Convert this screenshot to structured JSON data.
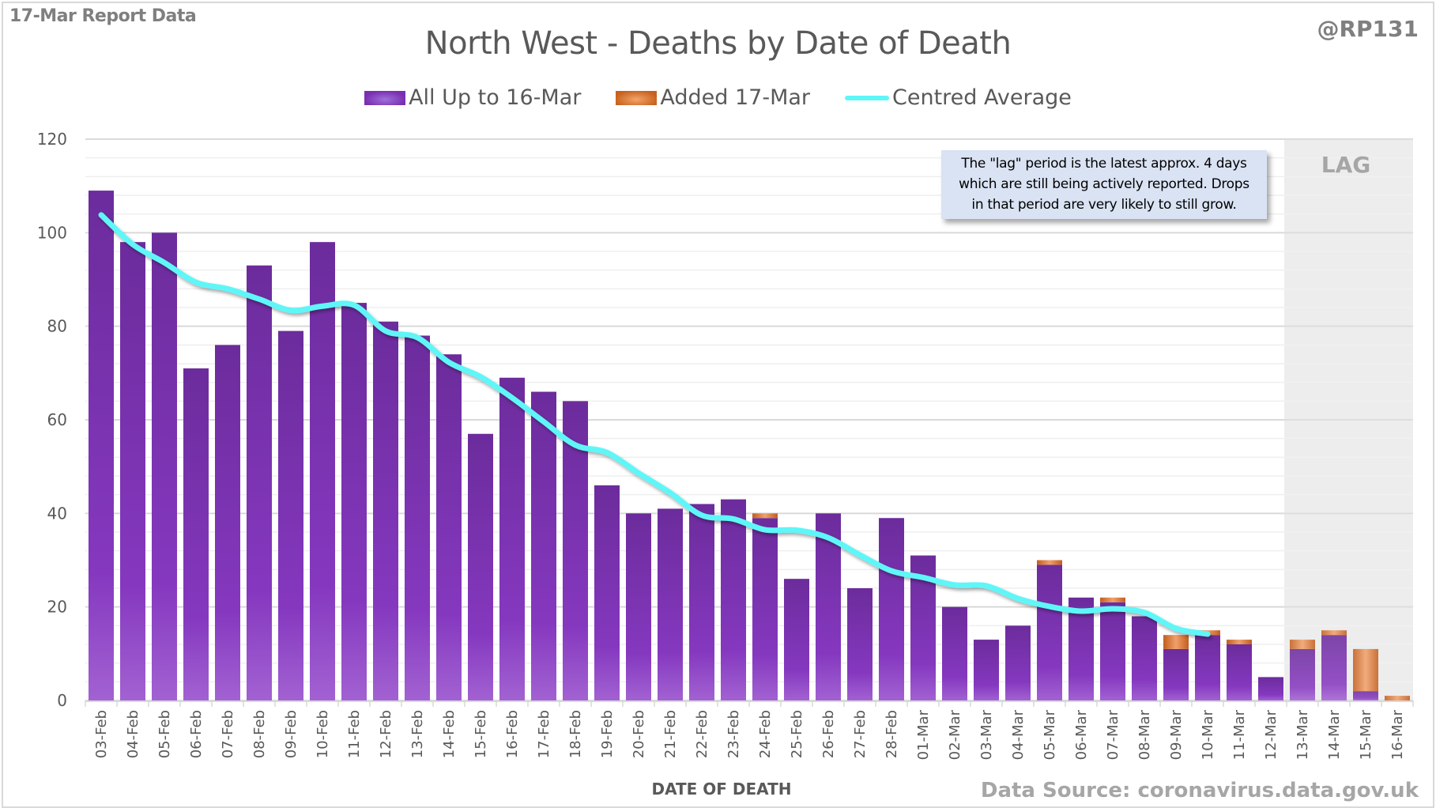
{
  "header": {
    "report_note": "17-Mar Report Data",
    "handle": "@RP131"
  },
  "annotation": {
    "lines": [
      "The \"lag\" period is the latest approx. 4 days",
      "which are still being actively reported.  Drops",
      "in that period are very likely to still grow."
    ],
    "lag_label": "LAG"
  },
  "footer": {
    "data_source": "Data Source: coronavirus.data.gov.uk"
  },
  "colors": {
    "all_up_to": "#7a2fb3",
    "added": "#d56f2a",
    "average": "#5ff6f8",
    "lag_shade": "#ebebeb",
    "annotation_bg": "#dae3f3"
  },
  "chart_data": {
    "type": "bar",
    "stacked": true,
    "title": "North West - Deaths by Date of Death",
    "xlabel": "DATE OF DEATH",
    "ylabel": "",
    "ylim": [
      0,
      120
    ],
    "yticks": [
      0,
      20,
      40,
      60,
      80,
      100,
      120
    ],
    "grid": true,
    "legend_position": "top-center",
    "categories": [
      "03-Feb",
      "04-Feb",
      "05-Feb",
      "06-Feb",
      "07-Feb",
      "08-Feb",
      "09-Feb",
      "10-Feb",
      "11-Feb",
      "12-Feb",
      "13-Feb",
      "14-Feb",
      "15-Feb",
      "16-Feb",
      "17-Feb",
      "18-Feb",
      "19-Feb",
      "20-Feb",
      "21-Feb",
      "22-Feb",
      "23-Feb",
      "24-Feb",
      "25-Feb",
      "26-Feb",
      "27-Feb",
      "28-Feb",
      "01-Mar",
      "02-Mar",
      "03-Mar",
      "04-Mar",
      "05-Mar",
      "06-Mar",
      "07-Mar",
      "08-Mar",
      "09-Mar",
      "10-Mar",
      "11-Mar",
      "12-Mar",
      "13-Mar",
      "14-Mar",
      "15-Mar",
      "16-Mar"
    ],
    "series": [
      {
        "name": "All Up to 16-Mar",
        "type": "bar",
        "values": [
          109,
          98,
          100,
          71,
          76,
          93,
          79,
          98,
          85,
          81,
          78,
          74,
          57,
          69,
          66,
          64,
          46,
          40,
          41,
          42,
          43,
          39,
          26,
          40,
          24,
          39,
          31,
          20,
          13,
          16,
          29,
          22,
          21,
          18,
          11,
          14,
          12,
          5,
          11,
          14,
          2,
          0
        ]
      },
      {
        "name": "Added 17-Mar",
        "type": "bar",
        "values": [
          0,
          0,
          0,
          0,
          0,
          0,
          0,
          0,
          0,
          0,
          0,
          0,
          0,
          0,
          0,
          0,
          0,
          0,
          0,
          0,
          0,
          1,
          0,
          0,
          0,
          0,
          0,
          0,
          0,
          0,
          1,
          0,
          1,
          0,
          3,
          1,
          1,
          0,
          2,
          1,
          9,
          1
        ]
      },
      {
        "name": "Centred Average",
        "type": "line",
        "values": [
          103.8,
          97.5,
          93.6,
          89.4,
          88.0,
          85.8,
          83.4,
          84.3,
          84.5,
          79.0,
          77.6,
          72.3,
          69.2,
          64.7,
          59.6,
          54.6,
          53.0,
          48.6,
          44.4,
          39.6,
          38.8,
          36.5,
          36.4,
          34.8,
          31.1,
          27.7,
          26.3,
          24.7,
          24.5,
          21.8,
          20.1,
          19.1,
          19.6,
          18.8,
          15.4,
          14.2,
          null,
          null,
          null,
          null,
          null,
          null
        ]
      }
    ],
    "lag_period": [
      "13-Mar",
      "16-Mar"
    ]
  }
}
